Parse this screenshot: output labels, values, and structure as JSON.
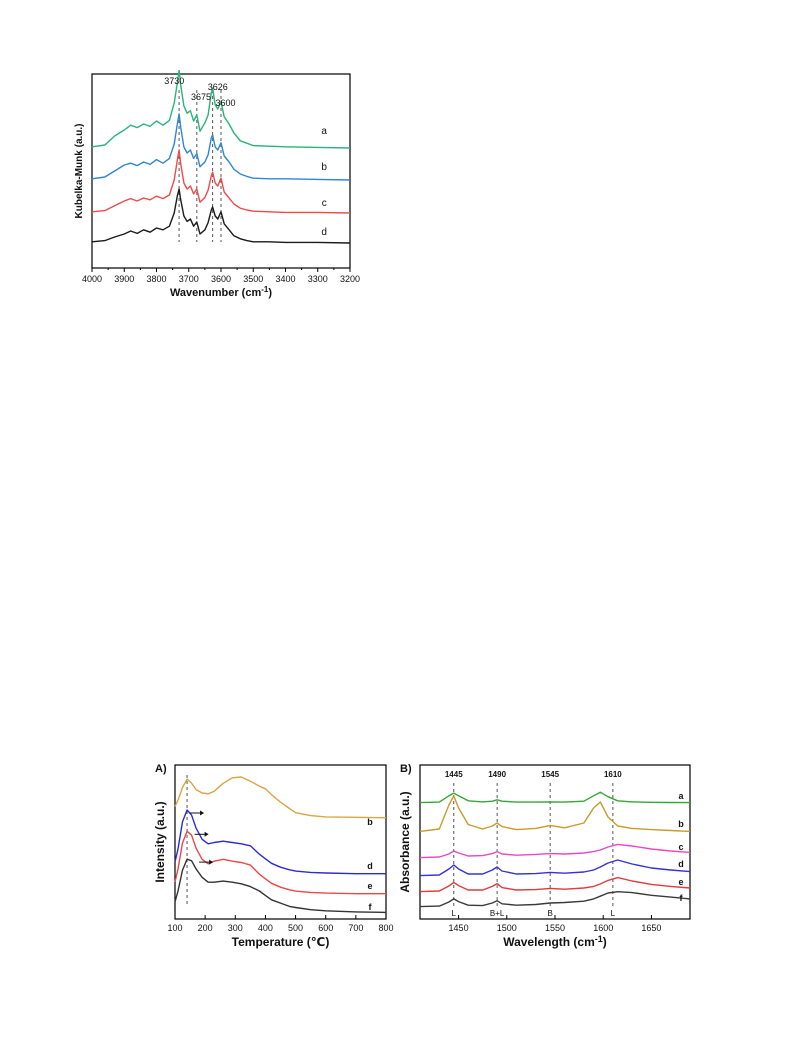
{
  "chart_data": [
    {
      "type": "line",
      "title": "",
      "xlabel": "Wavenumber (cm",
      "xlabel_sup": "-1",
      "xlabel_tail": ")",
      "ylabel": "Kubelka-Munk (a.u.)",
      "xlim": [
        4000,
        3200
      ],
      "x_reversed": true,
      "x_ticks": [
        "4000",
        "3900",
        "3800",
        "3700",
        "3600",
        "3500",
        "3400",
        "3300",
        "3200"
      ],
      "grid": false,
      "legend": "none",
      "annotations": [
        {
          "text": "3730",
          "x": 3730
        },
        {
          "text": "3675",
          "x": 3675
        },
        {
          "text": "3626",
          "x": 3626
        },
        {
          "text": "3600",
          "x": 3600
        }
      ],
      "series": [
        {
          "name": "a",
          "color": "#2bb37a",
          "x": [
            4000,
            3960,
            3930,
            3900,
            3880,
            3860,
            3840,
            3820,
            3800,
            3780,
            3760,
            3745,
            3735,
            3730,
            3725,
            3715,
            3705,
            3695,
            3685,
            3675,
            3665,
            3650,
            3640,
            3630,
            3626,
            3618,
            3610,
            3600,
            3590,
            3575,
            3560,
            3540,
            3520,
            3500,
            3450,
            3400,
            3300,
            3200
          ],
          "y": [
            0.02,
            0.05,
            0.2,
            0.3,
            0.38,
            0.34,
            0.4,
            0.36,
            0.45,
            0.38,
            0.46,
            0.75,
            1.1,
            1.3,
            1.05,
            0.7,
            0.58,
            0.62,
            0.45,
            0.55,
            0.28,
            0.42,
            0.55,
            0.92,
            1.0,
            0.72,
            0.65,
            0.78,
            0.52,
            0.4,
            0.25,
            0.12,
            0.08,
            0.04,
            0.03,
            0.02,
            0.01,
            0.0
          ]
        },
        {
          "name": "b",
          "color": "#2f86d6",
          "x": [
            4000,
            3960,
            3930,
            3900,
            3880,
            3860,
            3840,
            3820,
            3800,
            3780,
            3760,
            3745,
            3735,
            3730,
            3725,
            3715,
            3705,
            3695,
            3685,
            3675,
            3665,
            3650,
            3640,
            3630,
            3626,
            3618,
            3610,
            3600,
            3590,
            3575,
            3560,
            3540,
            3520,
            3500,
            3450,
            3400,
            3300,
            3200
          ],
          "y": [
            0.02,
            0.05,
            0.15,
            0.25,
            0.28,
            0.24,
            0.3,
            0.26,
            0.34,
            0.28,
            0.36,
            0.6,
            0.95,
            1.1,
            0.88,
            0.55,
            0.45,
            0.5,
            0.36,
            0.44,
            0.22,
            0.3,
            0.42,
            0.7,
            0.75,
            0.55,
            0.5,
            0.62,
            0.4,
            0.3,
            0.18,
            0.1,
            0.06,
            0.03,
            0.02,
            0.02,
            0.01,
            0.0
          ]
        },
        {
          "name": "c",
          "color": "#ee4b4b",
          "x": [
            4000,
            3960,
            3930,
            3900,
            3880,
            3860,
            3840,
            3820,
            3800,
            3780,
            3760,
            3745,
            3735,
            3730,
            3725,
            3715,
            3705,
            3695,
            3685,
            3675,
            3665,
            3650,
            3640,
            3630,
            3626,
            3618,
            3610,
            3600,
            3590,
            3575,
            3560,
            3540,
            3520,
            3500,
            3450,
            3400,
            3300,
            3200
          ],
          "y": [
            0.02,
            0.04,
            0.12,
            0.2,
            0.24,
            0.2,
            0.25,
            0.22,
            0.28,
            0.24,
            0.3,
            0.55,
            0.9,
            1.05,
            0.82,
            0.5,
            0.4,
            0.45,
            0.32,
            0.4,
            0.18,
            0.26,
            0.38,
            0.62,
            0.68,
            0.5,
            0.45,
            0.58,
            0.35,
            0.25,
            0.15,
            0.08,
            0.05,
            0.03,
            0.02,
            0.01,
            0.01,
            0.0
          ]
        },
        {
          "name": "d",
          "color": "#1a1a1a",
          "x": [
            4000,
            3960,
            3930,
            3900,
            3880,
            3860,
            3840,
            3820,
            3800,
            3780,
            3760,
            3745,
            3735,
            3730,
            3725,
            3715,
            3705,
            3695,
            3685,
            3675,
            3665,
            3650,
            3640,
            3630,
            3626,
            3618,
            3610,
            3600,
            3590,
            3575,
            3560,
            3540,
            3520,
            3500,
            3450,
            3400,
            3300,
            3200
          ],
          "y": [
            0.02,
            0.04,
            0.1,
            0.15,
            0.2,
            0.16,
            0.22,
            0.18,
            0.25,
            0.22,
            0.28,
            0.5,
            0.8,
            0.9,
            0.72,
            0.45,
            0.36,
            0.4,
            0.28,
            0.35,
            0.15,
            0.22,
            0.34,
            0.55,
            0.6,
            0.45,
            0.4,
            0.52,
            0.32,
            0.22,
            0.12,
            0.07,
            0.04,
            0.02,
            0.02,
            0.01,
            0.01,
            0.0
          ]
        }
      ]
    },
    {
      "type": "line",
      "panel_label": "A)",
      "title": "",
      "xlabel": "Temperature (℃)",
      "ylabel": "Intensity (a.u.)",
      "xlim": [
        100,
        800
      ],
      "x_ticks": [
        "100",
        "200",
        "300",
        "400",
        "500",
        "600",
        "700",
        "800"
      ],
      "grid": false,
      "legend": "none",
      "dashed_x": [
        140
      ],
      "arrows_at": [
        {
          "series": "d",
          "x": 150
        },
        {
          "series": "e",
          "x": 165
        },
        {
          "series": "f",
          "x": 180
        }
      ],
      "series": [
        {
          "name": "b",
          "color": "#d9a640",
          "x": [
            100,
            110,
            125,
            140,
            155,
            170,
            190,
            210,
            230,
            260,
            290,
            320,
            350,
            380,
            400,
            420,
            450,
            480,
            500,
            550,
            600,
            700,
            800
          ],
          "y": [
            0.3,
            0.45,
            0.75,
            0.95,
            0.85,
            0.7,
            0.62,
            0.6,
            0.66,
            0.85,
            0.98,
            1.0,
            0.9,
            0.78,
            0.72,
            0.58,
            0.4,
            0.25,
            0.15,
            0.08,
            0.05,
            0.04,
            0.03
          ]
        },
        {
          "name": "d",
          "color": "#2b2bd6",
          "x": [
            100,
            110,
            125,
            140,
            155,
            170,
            190,
            210,
            230,
            260,
            290,
            320,
            350,
            380,
            400,
            420,
            450,
            480,
            500,
            550,
            600,
            700,
            800
          ],
          "y": [
            0.2,
            0.4,
            0.82,
            1.0,
            0.92,
            0.72,
            0.55,
            0.48,
            0.5,
            0.52,
            0.5,
            0.48,
            0.45,
            0.32,
            0.25,
            0.18,
            0.12,
            0.08,
            0.06,
            0.04,
            0.03,
            0.02,
            0.02
          ]
        },
        {
          "name": "e",
          "color": "#e84848",
          "x": [
            100,
            110,
            125,
            140,
            155,
            170,
            190,
            210,
            230,
            260,
            290,
            320,
            350,
            380,
            400,
            420,
            450,
            480,
            500,
            550,
            600,
            700,
            800
          ],
          "y": [
            0.2,
            0.4,
            0.8,
            0.98,
            0.92,
            0.72,
            0.55,
            0.48,
            0.52,
            0.55,
            0.52,
            0.5,
            0.46,
            0.32,
            0.25,
            0.18,
            0.12,
            0.08,
            0.06,
            0.04,
            0.03,
            0.02,
            0.02
          ]
        },
        {
          "name": "f",
          "color": "#333333",
          "x": [
            100,
            110,
            125,
            140,
            155,
            170,
            190,
            210,
            230,
            260,
            290,
            320,
            350,
            380,
            400,
            420,
            450,
            480,
            500,
            550,
            600,
            700,
            800
          ],
          "y": [
            0.2,
            0.4,
            0.78,
            0.98,
            0.95,
            0.8,
            0.65,
            0.56,
            0.56,
            0.58,
            0.56,
            0.53,
            0.48,
            0.4,
            0.32,
            0.24,
            0.18,
            0.12,
            0.1,
            0.06,
            0.04,
            0.02,
            0.01
          ]
        }
      ]
    },
    {
      "type": "line",
      "panel_label": "B)",
      "title": "",
      "xlabel": "Wavelength (cm",
      "xlabel_sup": "-1",
      "xlabel_tail": ")",
      "ylabel": "Absorbance (a.u.)",
      "xlim": [
        1410,
        1690
      ],
      "x_ticks": [
        "1450",
        "1500",
        "1550",
        "1600",
        "1650"
      ],
      "grid": false,
      "legend": "none",
      "annotations_top": [
        {
          "text": "1445",
          "x": 1445
        },
        {
          "text": "1490",
          "x": 1490
        },
        {
          "text": "1545",
          "x": 1545
        },
        {
          "text": "1610",
          "x": 1610
        }
      ],
      "annotations_bottom": [
        {
          "text": "L",
          "x": 1445
        },
        {
          "text": "B+L",
          "x": 1490
        },
        {
          "text": "B",
          "x": 1545
        },
        {
          "text": "L",
          "x": 1610
        }
      ],
      "series": [
        {
          "name": "a",
          "color": "#33a832",
          "x": [
            1410,
            1430,
            1440,
            1445,
            1450,
            1460,
            1475,
            1485,
            1490,
            1495,
            1510,
            1530,
            1545,
            1560,
            1580,
            1590,
            1597,
            1605,
            1615,
            1630,
            1650,
            1670,
            1690
          ],
          "y": [
            0.02,
            0.05,
            0.4,
            0.55,
            0.4,
            0.12,
            0.06,
            0.1,
            0.18,
            0.1,
            0.05,
            0.05,
            0.06,
            0.05,
            0.1,
            0.4,
            0.6,
            0.35,
            0.12,
            0.06,
            0.04,
            0.03,
            0.02
          ]
        },
        {
          "name": "b",
          "color": "#c99a2e",
          "x": [
            1410,
            1430,
            1440,
            1445,
            1450,
            1460,
            1475,
            1485,
            1490,
            1495,
            1510,
            1530,
            1545,
            1560,
            1580,
            1590,
            1597,
            1605,
            1615,
            1630,
            1650,
            1670,
            1690
          ],
          "y": [
            0.02,
            0.1,
            0.9,
            1.2,
            0.8,
            0.25,
            0.1,
            0.2,
            0.3,
            0.18,
            0.08,
            0.12,
            0.22,
            0.14,
            0.3,
            0.8,
            1.0,
            0.5,
            0.2,
            0.12,
            0.08,
            0.05,
            0.02
          ]
        },
        {
          "name": "c",
          "color": "#e64ac8",
          "x": [
            1410,
            1430,
            1440,
            1445,
            1450,
            1460,
            1475,
            1485,
            1490,
            1495,
            1510,
            1530,
            1545,
            1560,
            1580,
            1590,
            1597,
            1605,
            1615,
            1630,
            1650,
            1670,
            1690
          ],
          "y": [
            0.02,
            0.05,
            0.2,
            0.35,
            0.25,
            0.1,
            0.12,
            0.22,
            0.32,
            0.2,
            0.14,
            0.18,
            0.22,
            0.2,
            0.25,
            0.32,
            0.4,
            0.55,
            0.68,
            0.6,
            0.45,
            0.35,
            0.28
          ]
        },
        {
          "name": "d",
          "color": "#3333d6",
          "x": [
            1410,
            1430,
            1440,
            1445,
            1450,
            1460,
            1475,
            1485,
            1490,
            1495,
            1510,
            1530,
            1545,
            1560,
            1580,
            1590,
            1597,
            1605,
            1615,
            1630,
            1650,
            1670,
            1690
          ],
          "y": [
            0.02,
            0.05,
            0.35,
            0.55,
            0.35,
            0.1,
            0.1,
            0.3,
            0.45,
            0.25,
            0.1,
            0.12,
            0.18,
            0.14,
            0.2,
            0.3,
            0.45,
            0.65,
            0.8,
            0.6,
            0.4,
            0.3,
            0.22
          ]
        },
        {
          "name": "e",
          "color": "#e23b3b",
          "x": [
            1410,
            1430,
            1440,
            1445,
            1450,
            1460,
            1475,
            1485,
            1490,
            1495,
            1510,
            1530,
            1545,
            1560,
            1580,
            1590,
            1597,
            1605,
            1615,
            1630,
            1650,
            1670,
            1690
          ],
          "y": [
            0.02,
            0.05,
            0.3,
            0.48,
            0.32,
            0.1,
            0.1,
            0.28,
            0.42,
            0.22,
            0.1,
            0.12,
            0.18,
            0.14,
            0.2,
            0.28,
            0.4,
            0.58,
            0.72,
            0.55,
            0.38,
            0.28,
            0.2
          ]
        },
        {
          "name": "f",
          "color": "#3a3a3a",
          "x": [
            1410,
            1430,
            1440,
            1445,
            1450,
            1460,
            1475,
            1485,
            1490,
            1495,
            1510,
            1530,
            1545,
            1560,
            1580,
            1590,
            1597,
            1605,
            1615,
            1630,
            1650,
            1670,
            1690
          ],
          "y": [
            0.02,
            0.05,
            0.28,
            0.45,
            0.3,
            0.1,
            0.08,
            0.22,
            0.35,
            0.18,
            0.1,
            0.14,
            0.22,
            0.25,
            0.32,
            0.45,
            0.6,
            0.78,
            0.85,
            0.8,
            0.65,
            0.55,
            0.45
          ]
        }
      ]
    }
  ]
}
